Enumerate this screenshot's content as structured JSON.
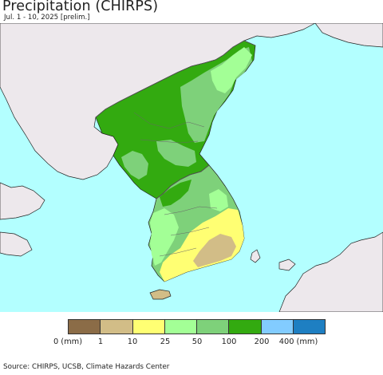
{
  "header": {
    "title": "Precipitation (CHIRPS)",
    "subtitle": "Jul. 1 - 10, 2025 [prelim.]"
  },
  "map": {
    "colors": {
      "sea": "#b3ffff",
      "land_outside": "#ede8ec",
      "border_line": "#555555",
      "coast_line": "#222222"
    }
  },
  "legend": {
    "labels": [
      "0 (mm)",
      "1",
      "10",
      "25",
      "50",
      "100",
      "200",
      "400 (mm)"
    ],
    "colors": [
      "#8b6c47",
      "#d2bd87",
      "#ffff73",
      "#a3ff96",
      "#7ed17a",
      "#33aa10",
      "#82ccff",
      "#1e7fc2"
    ]
  },
  "footer": {
    "source": "Source: CHIRPS, UCSB, Climate Hazards Center"
  }
}
